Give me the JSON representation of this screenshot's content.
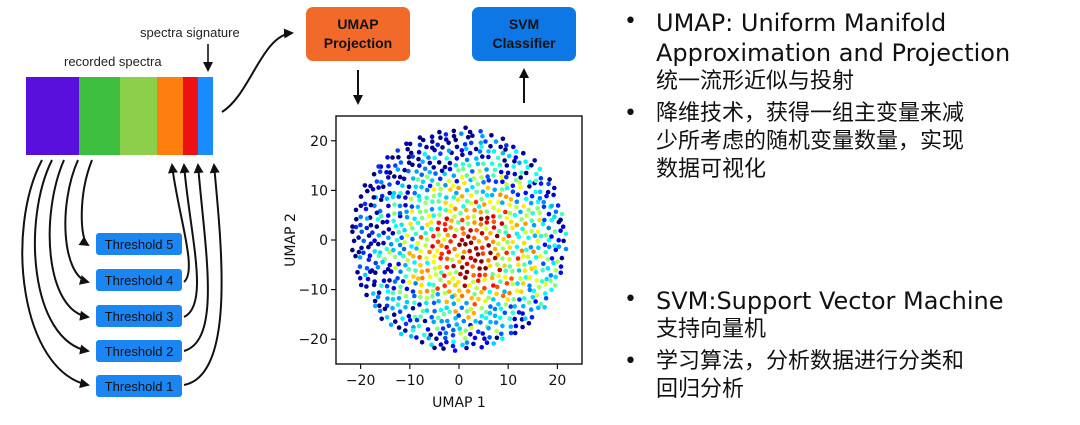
{
  "labels": {
    "spectra_signature": "spectra signature",
    "recorded_spectra": "recorded spectra"
  },
  "boxes": {
    "umap": [
      "UMAP",
      "Projection"
    ],
    "svm": [
      "SVM",
      "Classifier"
    ]
  },
  "thresholds": [
    "Threshold 5",
    "Threshold 4",
    "Threshold 3",
    "Threshold 2",
    "Threshold 1"
  ],
  "spectrum_colors": [
    "#5a10dc",
    "#3fbf3f",
    "#8ccf4a",
    "#ff7f0e",
    "#ee1111",
    "#1a8cff"
  ],
  "accent": {
    "umap_box": "#f26a2a",
    "svm_box": "#0e77e6",
    "threshold_box": "#1b85f2"
  },
  "bullets": [
    {
      "lines": [
        "UMAP: Uniform Manifold",
        "Approximation and Projection",
        "统一流形近似与投射"
      ]
    },
    {
      "lines": [
        "降维技术，获得一组主变量来减",
        "少所考虑的随机变量数量，实现",
        "数据可视化"
      ]
    },
    {
      "lines": [
        "SVM:Support Vector Machine",
        "支持向量机"
      ]
    },
    {
      "lines": [
        "学习算法，分析数据进行分类和",
        "回归分析"
      ]
    }
  ],
  "bullet_symbol": "•",
  "chart_data": {
    "type": "scatter",
    "xlabel": "UMAP 1",
    "ylabel": "UMAP 2",
    "xlim": [
      -25,
      25
    ],
    "ylim": [
      -25,
      25
    ],
    "xticks": [
      -20,
      -10,
      0,
      10,
      20
    ],
    "yticks": [
      -20,
      -10,
      0,
      10,
      20
    ],
    "xtick_labels": [
      "−20",
      "−10",
      "0",
      "10",
      "20"
    ],
    "ytick_labels": [
      "−20",
      "−10",
      "0",
      "10",
      "20"
    ],
    "colormap": "jet",
    "points": "approx. 900 points uniformly filling a disc of radius ~22 centred at (0, 0); colour shifts from red/orange near the centre to blue at the rim"
  }
}
